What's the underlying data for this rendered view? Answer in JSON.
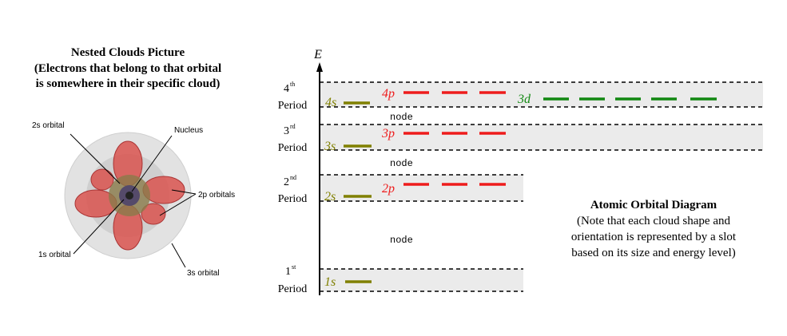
{
  "left": {
    "title": "Nested Clouds Picture",
    "subtitle": [
      "(Electrons that belong to that orbital",
      "is somewhere in their specific cloud)"
    ],
    "labels": [
      "2s orbital",
      "Nucleus",
      "2p orbitals",
      "1s orbital",
      "3s orbital"
    ]
  },
  "diagram": {
    "axis_label": "E",
    "periods": [
      {
        "number": "4",
        "suffix": "th",
        "label": "Period"
      },
      {
        "number": "3",
        "suffix": "rd",
        "label": "Period"
      },
      {
        "number": "2",
        "suffix": "nd",
        "label": "Period"
      },
      {
        "number": "1",
        "suffix": "st",
        "label": "Period"
      }
    ],
    "orbitals": [
      "4s",
      "4p",
      "3d",
      "3s",
      "3p",
      "2s",
      "2p",
      "1s"
    ],
    "node_labels": [
      "node",
      "node",
      "node"
    ],
    "caption": {
      "title": "Atomic Orbital Diagram",
      "lines": [
        "(Note that each cloud shape and",
        "orientation is represented by a slot",
        "based on its size and energy level)"
      ]
    }
  }
}
